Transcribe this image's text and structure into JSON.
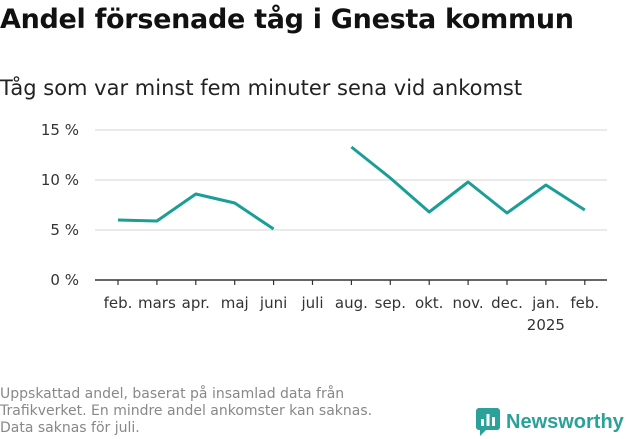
{
  "header": {
    "title": "Andel försenade tåg i Gnesta kommun",
    "subtitle": "Tåg som var minst fem minuter sena vid ankomst"
  },
  "footnote": "Uppskattad andel, baserat på insamlad data från\nTrafikverket. En mindre andel ankomster kan saknas.\nData saknas för juli.",
  "brand": {
    "name": "Newsworthy",
    "color": "#2aa199"
  },
  "chart_data": {
    "type": "line",
    "title": "Andel försenade tåg i Gnesta kommun",
    "subtitle": "Tåg som var minst fem minuter sena vid ankomst",
    "categories": [
      "feb.",
      "mars",
      "apr.",
      "maj",
      "juni",
      "juli",
      "aug.",
      "sep.",
      "okt.",
      "nov.",
      "dec.",
      "jan.",
      "feb."
    ],
    "year_label": {
      "category_index": 11,
      "text": "2025"
    },
    "series": [
      {
        "values": [
          6.0,
          5.9,
          8.6,
          7.7,
          5.1,
          null,
          13.3,
          10.2,
          6.8,
          9.8,
          6.7,
          9.5,
          7.0
        ],
        "color": "#1a9e96"
      }
    ],
    "ylim": [
      0,
      15
    ],
    "yticks": [
      0,
      5,
      10,
      15
    ],
    "ytick_labels": [
      "0 %",
      "5 %",
      "10 %",
      "15 %"
    ],
    "xlabel": "",
    "ylabel": "",
    "grid": true
  }
}
